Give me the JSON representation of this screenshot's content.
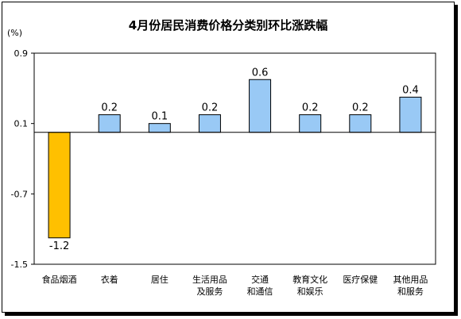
{
  "chart_data": {
    "type": "bar",
    "title": "4月份居民消费价格分类别环比涨跌幅",
    "unit_label": "(%)",
    "ylim": [
      -1.5,
      0.9
    ],
    "yticks": [
      "0.9",
      "0.1",
      "-0.7",
      "-1.5"
    ],
    "grid": false,
    "categories": [
      [
        "食品烟酒"
      ],
      [
        "衣着"
      ],
      [
        "居住"
      ],
      [
        "生活用品",
        "及服务"
      ],
      [
        "交通",
        "和通信"
      ],
      [
        "教育文化",
        "和娱乐"
      ],
      [
        "医疗保健"
      ],
      [
        "其他用品",
        "和服务"
      ]
    ],
    "values": [
      -1.2,
      0.2,
      0.1,
      0.2,
      0.6,
      0.2,
      0.2,
      0.4
    ],
    "value_labels": [
      "-1.2",
      "0.2",
      "0.1",
      "0.2",
      "0.6",
      "0.2",
      "0.2",
      "0.4"
    ],
    "colors": {
      "positive": "#99c9f5",
      "negative": "#ffc000",
      "outline": "#000000"
    }
  }
}
